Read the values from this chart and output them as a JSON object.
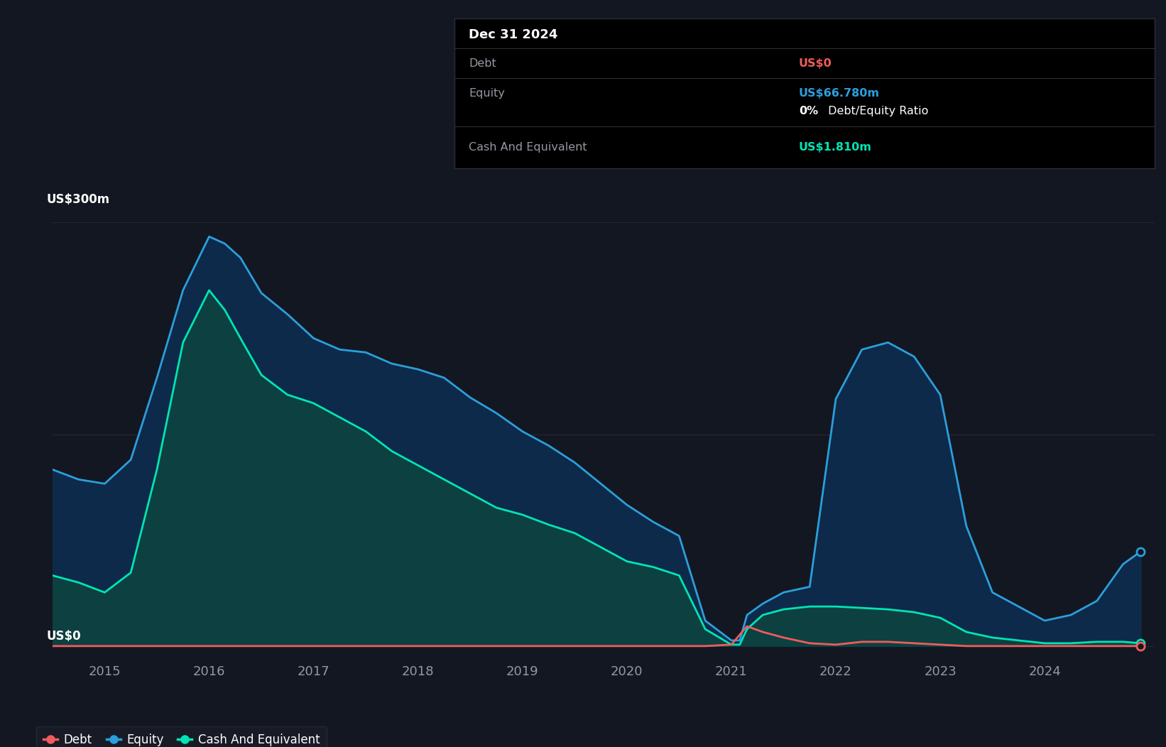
{
  "background_color": "#131722",
  "plot_bg_color": "#131722",
  "grid_color": "#2a2e39",
  "tick_label_color": "#9598a1",
  "y_label": "US$300m",
  "y_label_zero": "US$0",
  "debt_color": "#f05c5c",
  "equity_color": "#2b9fdb",
  "cash_color": "#00e5b4",
  "equity_fill": "#0d2a4a",
  "cash_fill": "#0d4040",
  "legend_bg": "#1a1d28",
  "time": [
    2014.5,
    2014.75,
    2015.0,
    2015.25,
    2015.5,
    2015.75,
    2016.0,
    2016.15,
    2016.3,
    2016.5,
    2016.75,
    2017.0,
    2017.25,
    2017.5,
    2017.75,
    2018.0,
    2018.25,
    2018.5,
    2018.75,
    2019.0,
    2019.25,
    2019.5,
    2019.75,
    2020.0,
    2020.25,
    2020.5,
    2020.75,
    2021.0,
    2021.08,
    2021.15,
    2021.3,
    2021.5,
    2021.75,
    2022.0,
    2022.25,
    2022.5,
    2022.75,
    2023.0,
    2023.25,
    2023.5,
    2023.75,
    2024.0,
    2024.25,
    2024.5,
    2024.75,
    2024.92
  ],
  "equity": [
    125,
    118,
    115,
    132,
    190,
    252,
    290,
    285,
    275,
    250,
    235,
    218,
    210,
    208,
    200,
    196,
    190,
    176,
    165,
    152,
    142,
    130,
    115,
    100,
    88,
    78,
    18,
    4,
    4,
    22,
    30,
    38,
    42,
    175,
    210,
    215,
    205,
    178,
    85,
    38,
    28,
    18,
    22,
    32,
    58,
    67
  ],
  "cash": [
    50,
    45,
    38,
    52,
    125,
    215,
    252,
    238,
    218,
    192,
    178,
    172,
    162,
    152,
    138,
    128,
    118,
    108,
    98,
    93,
    86,
    80,
    70,
    60,
    56,
    50,
    12,
    1,
    1,
    12,
    22,
    26,
    28,
    28,
    27,
    26,
    24,
    20,
    10,
    6,
    4,
    2,
    2,
    3,
    3,
    2
  ],
  "debt": [
    0,
    0,
    0,
    0,
    0,
    0,
    0,
    0,
    0,
    0,
    0,
    0,
    0,
    0,
    0,
    0,
    0,
    0,
    0,
    0,
    0,
    0,
    0,
    0,
    0,
    0,
    0,
    1,
    8,
    14,
    10,
    6,
    2,
    1,
    3,
    3,
    2,
    1,
    0,
    0,
    0,
    0,
    0,
    0,
    0,
    0
  ],
  "x_ticks": [
    2015,
    2016,
    2017,
    2018,
    2019,
    2020,
    2021,
    2022,
    2023,
    2024
  ],
  "tooltip": {
    "date": "Dec 31 2024",
    "debt_label": "Debt",
    "debt_value": "US$0",
    "debt_value_color": "#f05c5c",
    "equity_label": "Equity",
    "equity_value": "US$66.780m",
    "equity_value_color": "#2b9fdb",
    "ratio_label": "0%",
    "ratio_text": " Debt/Equity Ratio",
    "cash_label": "Cash And Equivalent",
    "cash_value": "US$1.810m",
    "cash_value_color": "#00e5b4"
  },
  "legend": [
    {
      "label": "Debt",
      "color": "#f05c5c"
    },
    {
      "label": "Equity",
      "color": "#2b9fdb"
    },
    {
      "label": "Cash And Equivalent",
      "color": "#00e5b4"
    }
  ]
}
